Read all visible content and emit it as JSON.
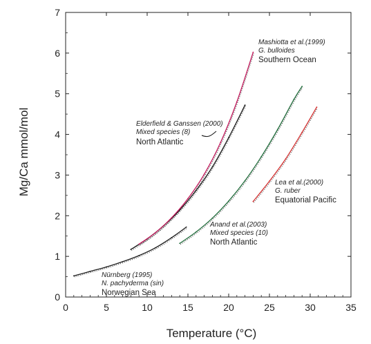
{
  "chart_data": {
    "type": "line",
    "title": "",
    "xlabel": "Temperature (°C)",
    "ylabel": "Mg/Ca mmol/mol",
    "xlim": [
      0,
      35
    ],
    "ylim": [
      0,
      7
    ],
    "xticks": [
      "0",
      "5",
      "10",
      "15",
      "20",
      "25",
      "30",
      "35"
    ],
    "yticks": [
      "0",
      "1",
      "2",
      "3",
      "4",
      "5",
      "6",
      "7"
    ],
    "grid": false,
    "series": [
      {
        "name": "Nürnberg (1995)",
        "color": "#1a1a1a",
        "x": [
          1,
          3,
          5,
          7,
          9,
          11,
          13,
          14.8
        ],
        "y": [
          0.52,
          0.63,
          0.74,
          0.87,
          1.02,
          1.21,
          1.46,
          1.72
        ]
      },
      {
        "name": "Elderfield & Ganssen (2000)",
        "color": "#111111",
        "x": [
          8,
          10,
          12,
          14,
          16,
          18,
          20,
          22
        ],
        "y": [
          1.17,
          1.43,
          1.75,
          2.14,
          2.62,
          3.2,
          3.92,
          4.72
        ]
      },
      {
        "name": "Mashiotta et al.(1999)",
        "color": "#c2185b",
        "x": [
          9,
          11,
          13,
          15,
          17,
          19,
          21,
          23
        ],
        "y": [
          1.3,
          1.58,
          1.95,
          2.42,
          3.02,
          3.8,
          4.8,
          6.02
        ]
      },
      {
        "name": "Anand et al.(2003)",
        "color": "#1f6b3a",
        "x": [
          14,
          16,
          18,
          20,
          22,
          24,
          26,
          28,
          29
        ],
        "y": [
          1.32,
          1.6,
          1.94,
          2.36,
          2.86,
          3.45,
          4.12,
          4.86,
          5.18
        ]
      },
      {
        "name": "Lea et al.(2000)",
        "color": "#d32f2f",
        "x": [
          23,
          25,
          27,
          29,
          30.8
        ],
        "y": [
          2.35,
          2.85,
          3.4,
          4.05,
          4.67
        ]
      }
    ],
    "annotations": [
      {
        "id": "nurnberg",
        "lines": [
          "Nürnberg (1995)",
          "N. pachyderma (sin)",
          "Norwegian Sea"
        ]
      },
      {
        "id": "elderfield",
        "lines": [
          "Elderfield & Ganssen (2000)",
          "Mixed species (8)",
          "North Atlantic"
        ]
      },
      {
        "id": "mashiotta",
        "lines": [
          "Mashiotta et al.(1999)",
          "G. bulloides",
          "Southern Ocean"
        ]
      },
      {
        "id": "anand",
        "lines": [
          "Anand et al.(2003)",
          "Mixed species (10)",
          "North Atlantic"
        ]
      },
      {
        "id": "lea",
        "lines": [
          "Lea et al.(2000)",
          "G. ruber",
          "Equatorial Pacific"
        ]
      }
    ]
  }
}
